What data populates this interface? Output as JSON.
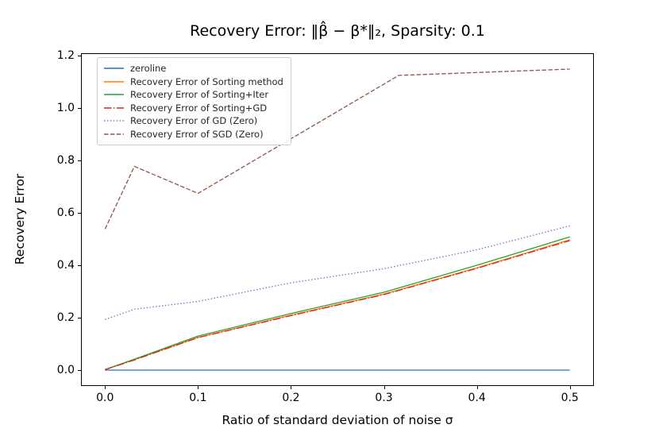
{
  "chart_data": {
    "type": "line",
    "title": "Recovery Error: ‖β̂ − β*‖₂, Sparsity: 0.1",
    "xlabel": "Ratio of standard deviation of noise σ",
    "ylabel": "Recovery Error",
    "xlim": [
      -0.025,
      0.525
    ],
    "ylim": [
      -0.0574,
      1.2054
    ],
    "xticks": [
      0.0,
      0.1,
      0.2,
      0.3,
      0.4,
      0.5
    ],
    "xtick_labels": [
      "0.0",
      "0.1",
      "0.2",
      "0.3",
      "0.4",
      "0.5"
    ],
    "yticks": [
      0.0,
      0.2,
      0.4,
      0.6,
      0.8,
      1.0,
      1.2
    ],
    "ytick_labels": [
      "0.0",
      "0.2",
      "0.4",
      "0.6",
      "0.8",
      "1.0",
      "1.2"
    ],
    "grid": false,
    "legend_position": "upper left",
    "series": [
      {
        "name": "zeroline",
        "color": "#1f77b4",
        "style": "solid",
        "x": [
          0.0,
          0.5
        ],
        "y": [
          0.0,
          0.0
        ]
      },
      {
        "name": "Recovery Error of Sorting method",
        "color": "#ff7f0e",
        "style": "solid",
        "x": [
          0.0,
          0.0316,
          0.1,
          0.2,
          0.3,
          0.4,
          0.5
        ],
        "y": [
          0.002,
          0.04,
          0.125,
          0.21,
          0.29,
          0.39,
          0.497
        ]
      },
      {
        "name": "Recovery Error of Sorting+Iter",
        "color": "#2ca02c",
        "style": "solid",
        "x": [
          0.0,
          0.0316,
          0.1,
          0.2,
          0.3,
          0.4,
          0.5
        ],
        "y": [
          0.002,
          0.042,
          0.13,
          0.216,
          0.297,
          0.4,
          0.508
        ]
      },
      {
        "name": "Recovery Error of Sorting+GD",
        "color": "#d62728",
        "style": "dashdot",
        "x": [
          0.0,
          0.0316,
          0.1,
          0.2,
          0.3,
          0.4,
          0.5
        ],
        "y": [
          0.002,
          0.039,
          0.124,
          0.208,
          0.288,
          0.388,
          0.494
        ]
      },
      {
        "name": "Recovery Error of GD (Zero)",
        "color": "#9467bd",
        "style": "dotted",
        "x": [
          0.0,
          0.0316,
          0.1,
          0.2,
          0.3,
          0.4,
          0.5
        ],
        "y": [
          0.193,
          0.232,
          0.262,
          0.333,
          0.387,
          0.459,
          0.55
        ]
      },
      {
        "name": "Recovery Error of SGD (Zero)",
        "color": "#8c564b",
        "style": "dashed",
        "x": [
          0.0,
          0.0316,
          0.1,
          0.316,
          0.5
        ],
        "y": [
          0.538,
          0.777,
          0.674,
          1.124,
          1.148
        ]
      }
    ]
  }
}
